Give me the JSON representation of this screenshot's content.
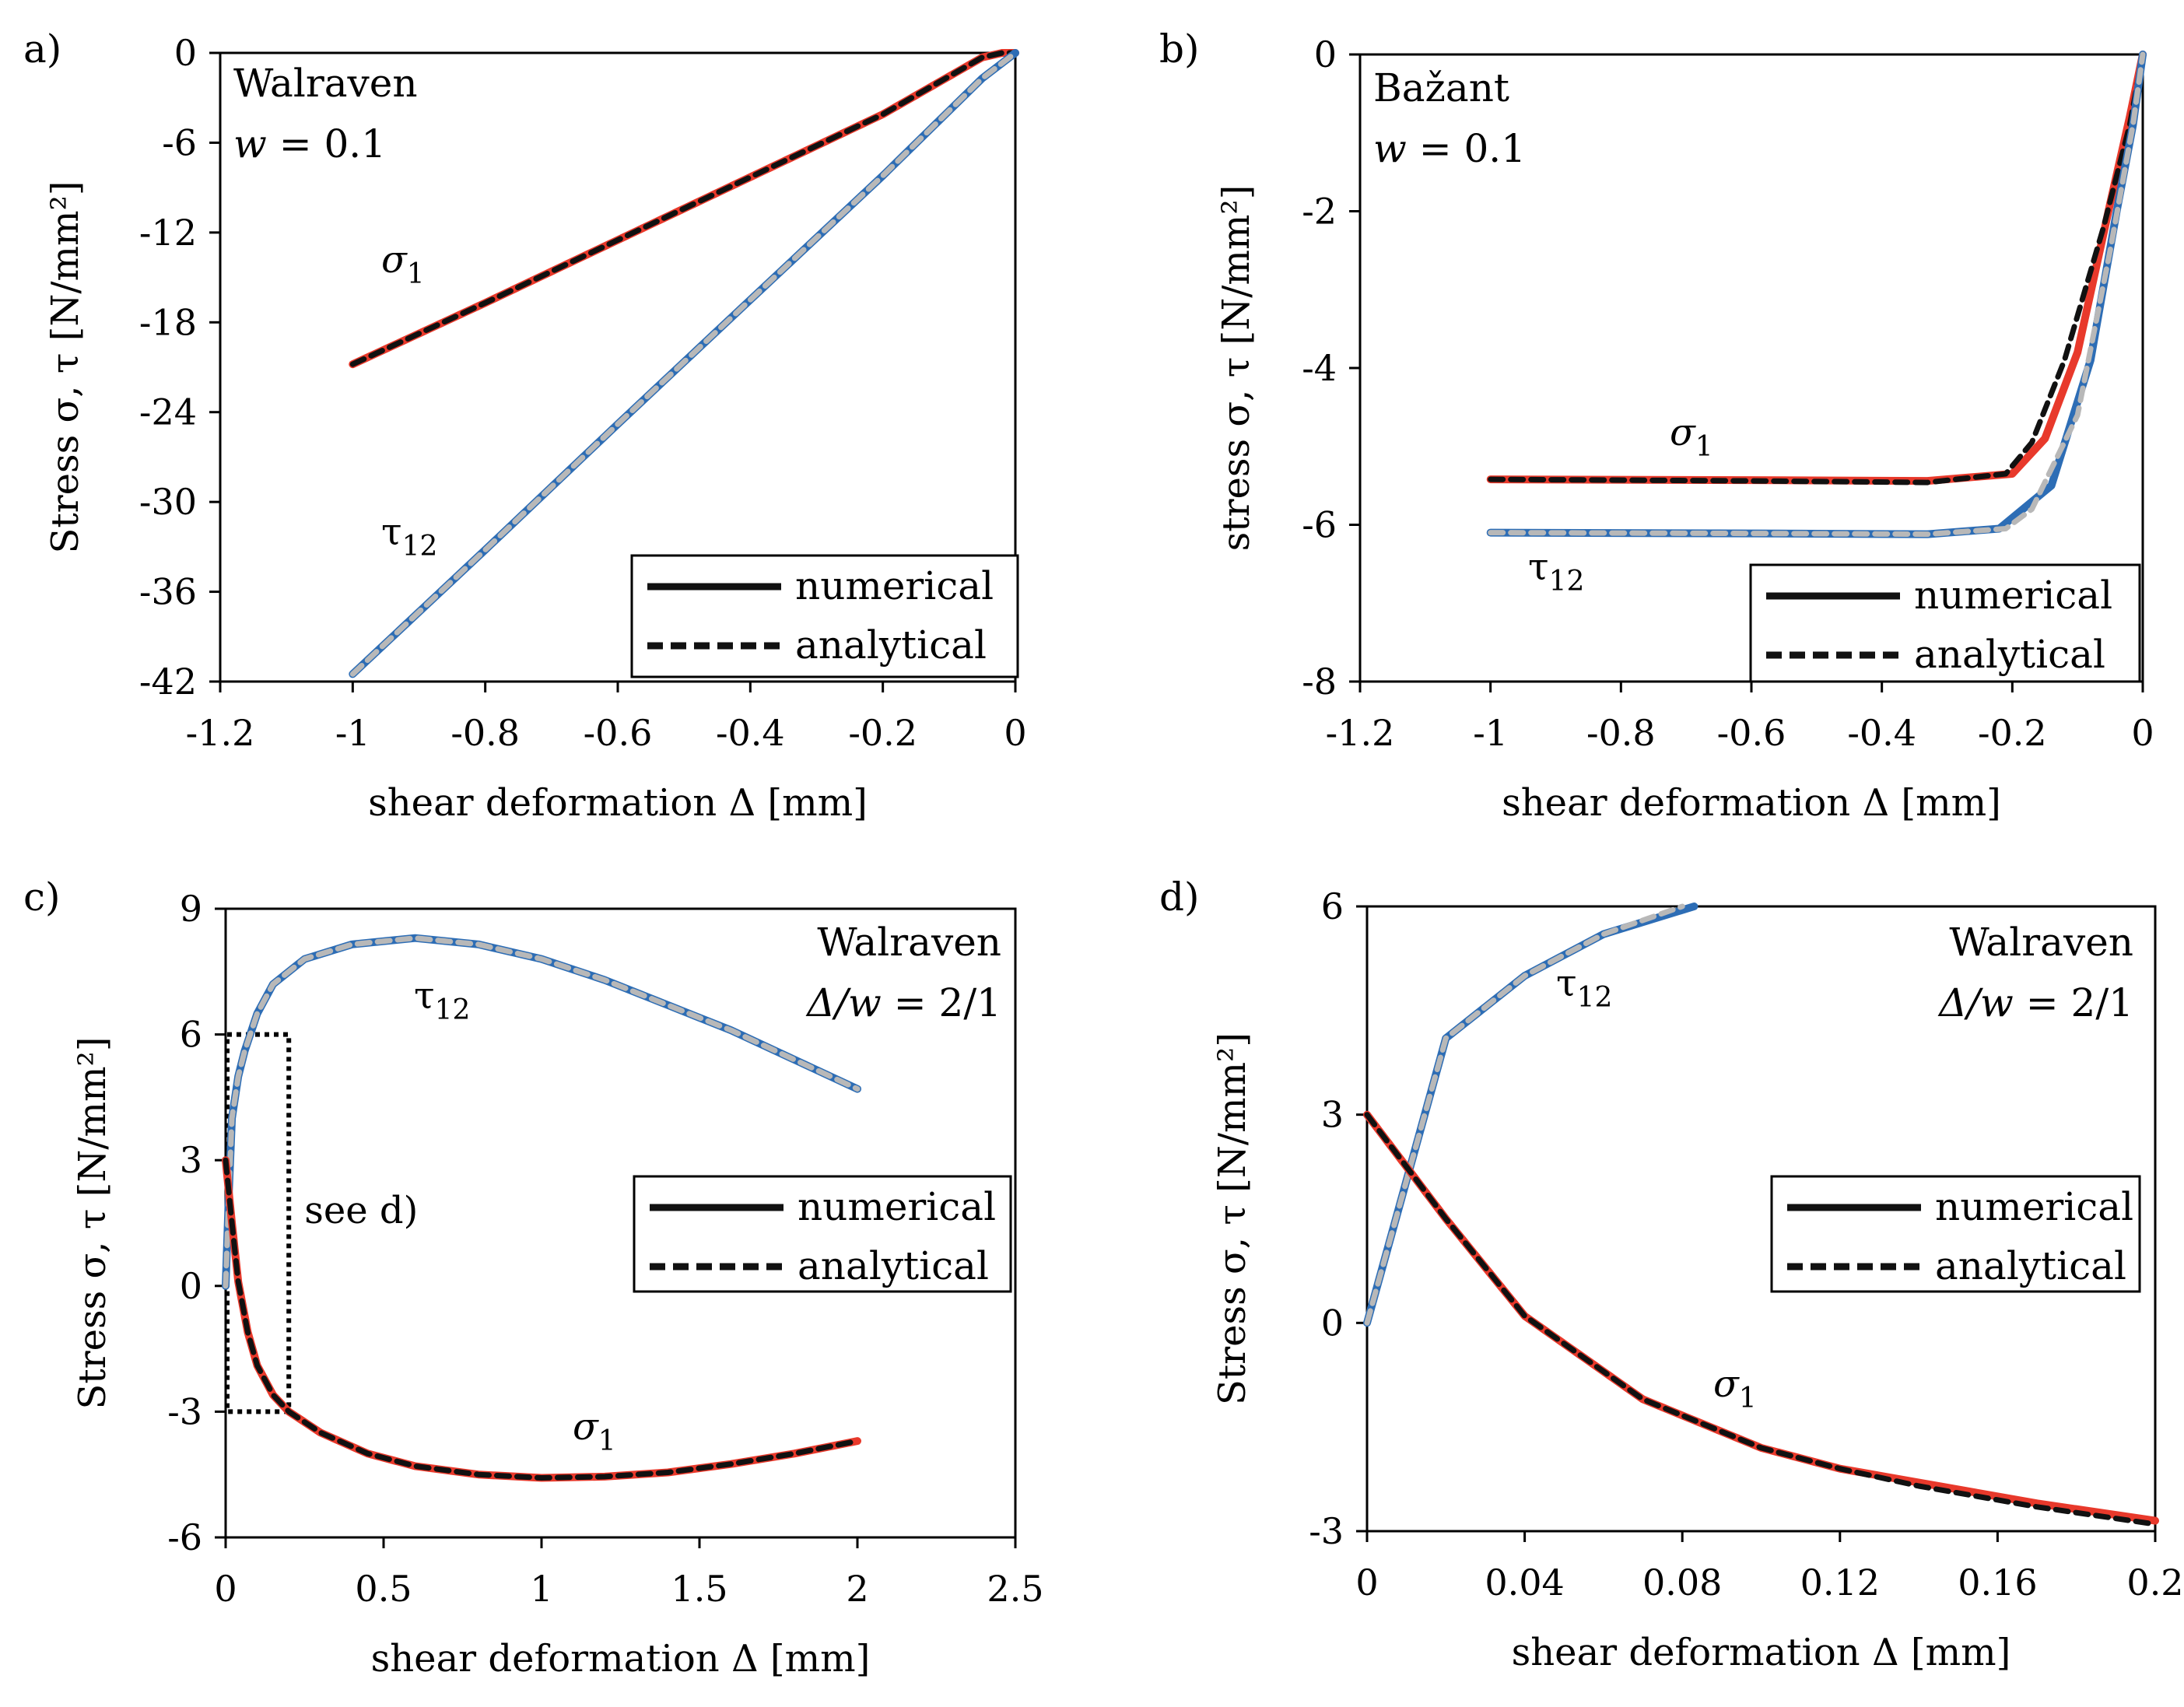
{
  "chart_data": [
    {
      "id": "a",
      "panel_label": "a)",
      "type": "line",
      "model": "Walraven",
      "param_prefix": "w",
      "param_value": " = 0.1",
      "xlabel": "shear deformation  Δ [mm]",
      "ylabel": "Stress σ, τ [N/mm²]",
      "xlim": [
        -1.2,
        0
      ],
      "ylim": [
        -42,
        0
      ],
      "xticks": [
        "-1.2",
        "-1",
        "-0.8",
        "-0.6",
        "-0.4",
        "-0.2",
        "0"
      ],
      "yticks": [
        "0",
        "-6",
        "-12",
        "-18",
        "-24",
        "-30",
        "-36",
        "-42"
      ],
      "legend": {
        "position": "bottom-right",
        "entries": [
          "numerical",
          "analytical"
        ]
      },
      "annotations": [
        {
          "text": "σ",
          "sub": "1"
        },
        {
          "text": "τ",
          "sub": "12"
        }
      ],
      "series": [
        {
          "name": "σ1 numerical",
          "color": "#e8392b",
          "style": "solid",
          "x": [
            -1,
            -0.8,
            -0.6,
            -0.4,
            -0.2,
            -0.05,
            -0.02,
            0
          ],
          "y": [
            -20.8,
            -16.7,
            -12.5,
            -8.3,
            -4.1,
            -0.3,
            0,
            0
          ]
        },
        {
          "name": "σ1 analytical",
          "color": "#111111",
          "style": "dashed",
          "x": [
            -1,
            -0.8,
            -0.6,
            -0.4,
            -0.2,
            -0.05,
            -0.02,
            0
          ],
          "y": [
            -20.8,
            -16.7,
            -12.5,
            -8.3,
            -4.1,
            -0.3,
            0,
            0
          ]
        },
        {
          "name": "τ12 numerical",
          "color": "#2d6db5",
          "style": "solid",
          "x": [
            -1,
            -0.8,
            -0.6,
            -0.4,
            -0.2,
            -0.05,
            0
          ],
          "y": [
            -41.5,
            -33.2,
            -24.8,
            -16.5,
            -8.2,
            -1.7,
            0
          ]
        },
        {
          "name": "τ12 analytical",
          "color": "#b8b8b8",
          "style": "dashed",
          "x": [
            -1,
            -0.8,
            -0.6,
            -0.4,
            -0.2,
            -0.05,
            0
          ],
          "y": [
            -41.5,
            -33.2,
            -24.8,
            -16.5,
            -8.2,
            -1.7,
            0
          ]
        }
      ]
    },
    {
      "id": "b",
      "panel_label": "b)",
      "type": "line",
      "model": "Bažant",
      "param_prefix": "w",
      "param_value": " = 0.1",
      "xlabel": "shear deformation  Δ [mm]",
      "ylabel": "stress σ, τ [N/mm²]",
      "xlim": [
        -1.2,
        0
      ],
      "ylim": [
        -8,
        0
      ],
      "xticks": [
        "-1.2",
        "-1",
        "-0.8",
        "-0.6",
        "-0.4",
        "-0.2",
        "0"
      ],
      "yticks": [
        "0",
        "-2",
        "-4",
        "-6",
        "-8"
      ],
      "legend": {
        "position": "bottom-right",
        "entries": [
          "numerical",
          "analytical"
        ]
      },
      "annotations": [
        {
          "text": "σ",
          "sub": "1"
        },
        {
          "text": "τ",
          "sub": "12"
        }
      ],
      "series": [
        {
          "name": "σ1 numerical",
          "color": "#e8392b",
          "style": "solid",
          "x": [
            -1,
            -0.6,
            -0.33,
            -0.2,
            -0.15,
            -0.1,
            -0.05,
            -0.02,
            0
          ],
          "y": [
            -5.42,
            -5.43,
            -5.44,
            -5.35,
            -4.9,
            -3.8,
            -1.9,
            -0.8,
            0
          ]
        },
        {
          "name": "σ1 analytical",
          "color": "#111111",
          "style": "dashed",
          "x": [
            -1,
            -0.6,
            -0.33,
            -0.21,
            -0.17,
            -0.12,
            -0.06,
            -0.02,
            0
          ],
          "y": [
            -5.42,
            -5.44,
            -5.46,
            -5.35,
            -4.95,
            -3.9,
            -2.2,
            -0.9,
            0
          ]
        },
        {
          "name": "τ12 numerical",
          "color": "#2d6db5",
          "style": "solid",
          "x": [
            -1,
            -0.6,
            -0.33,
            -0.22,
            -0.14,
            -0.08,
            -0.04,
            -0.015,
            0
          ],
          "y": [
            -6.1,
            -6.11,
            -6.12,
            -6.05,
            -5.5,
            -3.9,
            -2.0,
            -0.9,
            0
          ]
        },
        {
          "name": "τ12 analytical",
          "color": "#b8b8b8",
          "style": "dashed",
          "x": [
            -1,
            -0.6,
            -0.33,
            -0.21,
            -0.17,
            -0.1,
            -0.05,
            -0.015,
            0
          ],
          "y": [
            -6.1,
            -6.11,
            -6.12,
            -6.05,
            -5.8,
            -4.6,
            -2.5,
            -0.9,
            0
          ]
        }
      ]
    },
    {
      "id": "c",
      "panel_label": "c)",
      "type": "line",
      "model": "Walraven",
      "param_prefix": "Δ/w",
      "param_value": " = 2/1",
      "xlabel": "shear deformation  Δ [mm]",
      "ylabel": "Stress σ, τ [N/mm²]",
      "xlim": [
        0,
        2.5
      ],
      "ylim": [
        -6,
        9
      ],
      "xticks": [
        "0",
        "0.5",
        "1",
        "1.5",
        "2",
        "2.5"
      ],
      "yticks": [
        "9",
        "6",
        "3",
        "0",
        "-3",
        "-6"
      ],
      "legend": {
        "position": "center-right",
        "entries": [
          "numerical",
          "analytical"
        ]
      },
      "annotations": [
        {
          "text": "τ",
          "sub": "12"
        },
        {
          "text": "σ",
          "sub": "1"
        },
        {
          "text": "see d)"
        }
      ],
      "inset_box": {
        "x": [
          0,
          0.2
        ],
        "y": [
          -3,
          6
        ]
      },
      "series": [
        {
          "name": "τ12 numerical",
          "color": "#2d6db5",
          "style": "solid",
          "x": [
            0,
            0.01,
            0.02,
            0.04,
            0.06,
            0.1,
            0.15,
            0.25,
            0.4,
            0.6,
            0.8,
            1.0,
            1.2,
            1.4,
            1.6,
            1.8,
            2.0
          ],
          "y": [
            0,
            2.2,
            4.0,
            5.0,
            5.6,
            6.5,
            7.2,
            7.8,
            8.15,
            8.3,
            8.15,
            7.8,
            7.3,
            6.7,
            6.1,
            5.4,
            4.7
          ]
        },
        {
          "name": "τ12 analytical",
          "color": "#b8b8b8",
          "style": "dashed",
          "x": [
            0,
            0.01,
            0.02,
            0.04,
            0.06,
            0.1,
            0.15,
            0.25,
            0.4,
            0.6,
            0.8,
            1.0,
            1.2,
            1.4,
            1.6,
            1.8,
            2.0
          ],
          "y": [
            0,
            2.2,
            4.0,
            5.0,
            5.6,
            6.5,
            7.2,
            7.8,
            8.15,
            8.3,
            8.15,
            7.8,
            7.3,
            6.7,
            6.1,
            5.4,
            4.7
          ]
        },
        {
          "name": "σ1 numerical",
          "color": "#e8392b",
          "style": "solid",
          "x": [
            0,
            0.02,
            0.04,
            0.07,
            0.1,
            0.15,
            0.2,
            0.3,
            0.45,
            0.6,
            0.8,
            1.0,
            1.2,
            1.4,
            1.6,
            1.8,
            2.0
          ],
          "y": [
            3.0,
            1.5,
            0.1,
            -1.1,
            -1.9,
            -2.6,
            -3.0,
            -3.5,
            -4.0,
            -4.3,
            -4.5,
            -4.58,
            -4.55,
            -4.45,
            -4.25,
            -4.0,
            -3.7
          ]
        },
        {
          "name": "σ1 analytical",
          "color": "#111111",
          "style": "dashed",
          "x": [
            0,
            0.02,
            0.04,
            0.07,
            0.1,
            0.15,
            0.2,
            0.3,
            0.45,
            0.6,
            0.8,
            1.0,
            1.2,
            1.4,
            1.6,
            1.8,
            2.0
          ],
          "y": [
            3.0,
            1.5,
            0.1,
            -1.1,
            -1.9,
            -2.6,
            -3.0,
            -3.5,
            -4.0,
            -4.3,
            -4.5,
            -4.58,
            -4.55,
            -4.45,
            -4.25,
            -4.0,
            -3.7
          ]
        }
      ]
    },
    {
      "id": "d",
      "panel_label": "d)",
      "type": "line",
      "model": "Walraven",
      "param_prefix": "Δ/w",
      "param_value": " = 2/1",
      "xlabel": "shear deformation  Δ [mm]",
      "ylabel": "Stress σ, τ [N/mm²]",
      "xlim": [
        0,
        0.2
      ],
      "ylim": [
        -3,
        6
      ],
      "xticks": [
        "0",
        "0.04",
        "0.08",
        "0.12",
        "0.16",
        "0.2"
      ],
      "yticks": [
        "6",
        "3",
        "0",
        "-3"
      ],
      "legend": {
        "position": "center-right",
        "entries": [
          "numerical",
          "analytical"
        ]
      },
      "annotations": [
        {
          "text": "τ",
          "sub": "12"
        },
        {
          "text": "σ",
          "sub": "1"
        }
      ],
      "series": [
        {
          "name": "τ12 numerical",
          "color": "#2d6db5",
          "style": "solid",
          "x": [
            0,
            0.02,
            0.04,
            0.06,
            0.083
          ],
          "y": [
            0,
            4.1,
            5.0,
            5.6,
            6.0
          ]
        },
        {
          "name": "τ12 analytical",
          "color": "#b8b8b8",
          "style": "dashed",
          "x": [
            0,
            0.02,
            0.04,
            0.06,
            0.08
          ],
          "y": [
            0,
            4.1,
            5.0,
            5.6,
            6.0
          ]
        },
        {
          "name": "σ1 numerical",
          "color": "#e8392b",
          "style": "solid",
          "x": [
            0,
            0.02,
            0.04,
            0.07,
            0.1,
            0.12,
            0.14,
            0.17,
            0.2
          ],
          "y": [
            3.0,
            1.5,
            0.1,
            -1.1,
            -1.8,
            -2.1,
            -2.3,
            -2.6,
            -2.85
          ]
        },
        {
          "name": "σ1 analytical",
          "color": "#111111",
          "style": "dashed",
          "x": [
            0,
            0.02,
            0.04,
            0.07,
            0.1,
            0.12,
            0.14,
            0.17,
            0.2
          ],
          "y": [
            3.0,
            1.5,
            0.1,
            -1.1,
            -1.8,
            -2.1,
            -2.35,
            -2.65,
            -2.9
          ]
        }
      ]
    }
  ]
}
